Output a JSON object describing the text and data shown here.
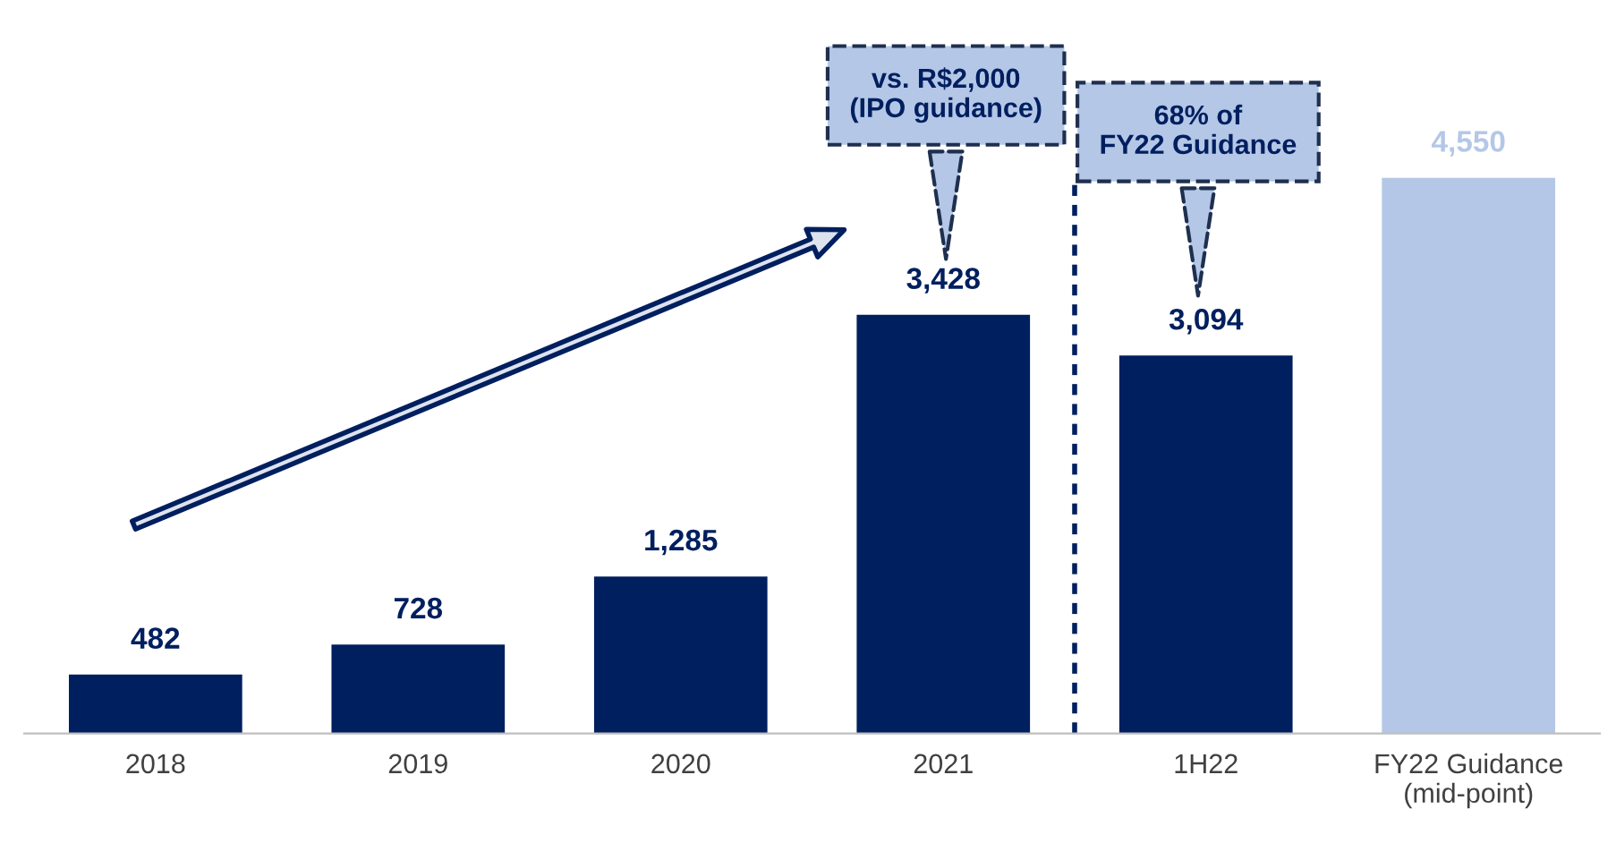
{
  "chart_data": {
    "type": "bar",
    "categories": [
      "2018",
      "2019",
      "2020",
      "2021",
      "1H22",
      "FY22 Guidance\n(mid-point)"
    ],
    "values": [
      482,
      728,
      1285,
      3428,
      3094,
      4550
    ],
    "colors": [
      "#001f5f",
      "#001f5f",
      "#001f5f",
      "#001f5f",
      "#001f5f",
      "#b4c7e7"
    ],
    "value_labels": [
      "482",
      "728",
      "1,285",
      "3,428",
      "3,094",
      "4,550"
    ],
    "tick_labels": "x",
    "annotations": [
      "vs. R$2,000\n(IPO guidance)",
      "68% of\nFY22 Guidance"
    ]
  }
}
